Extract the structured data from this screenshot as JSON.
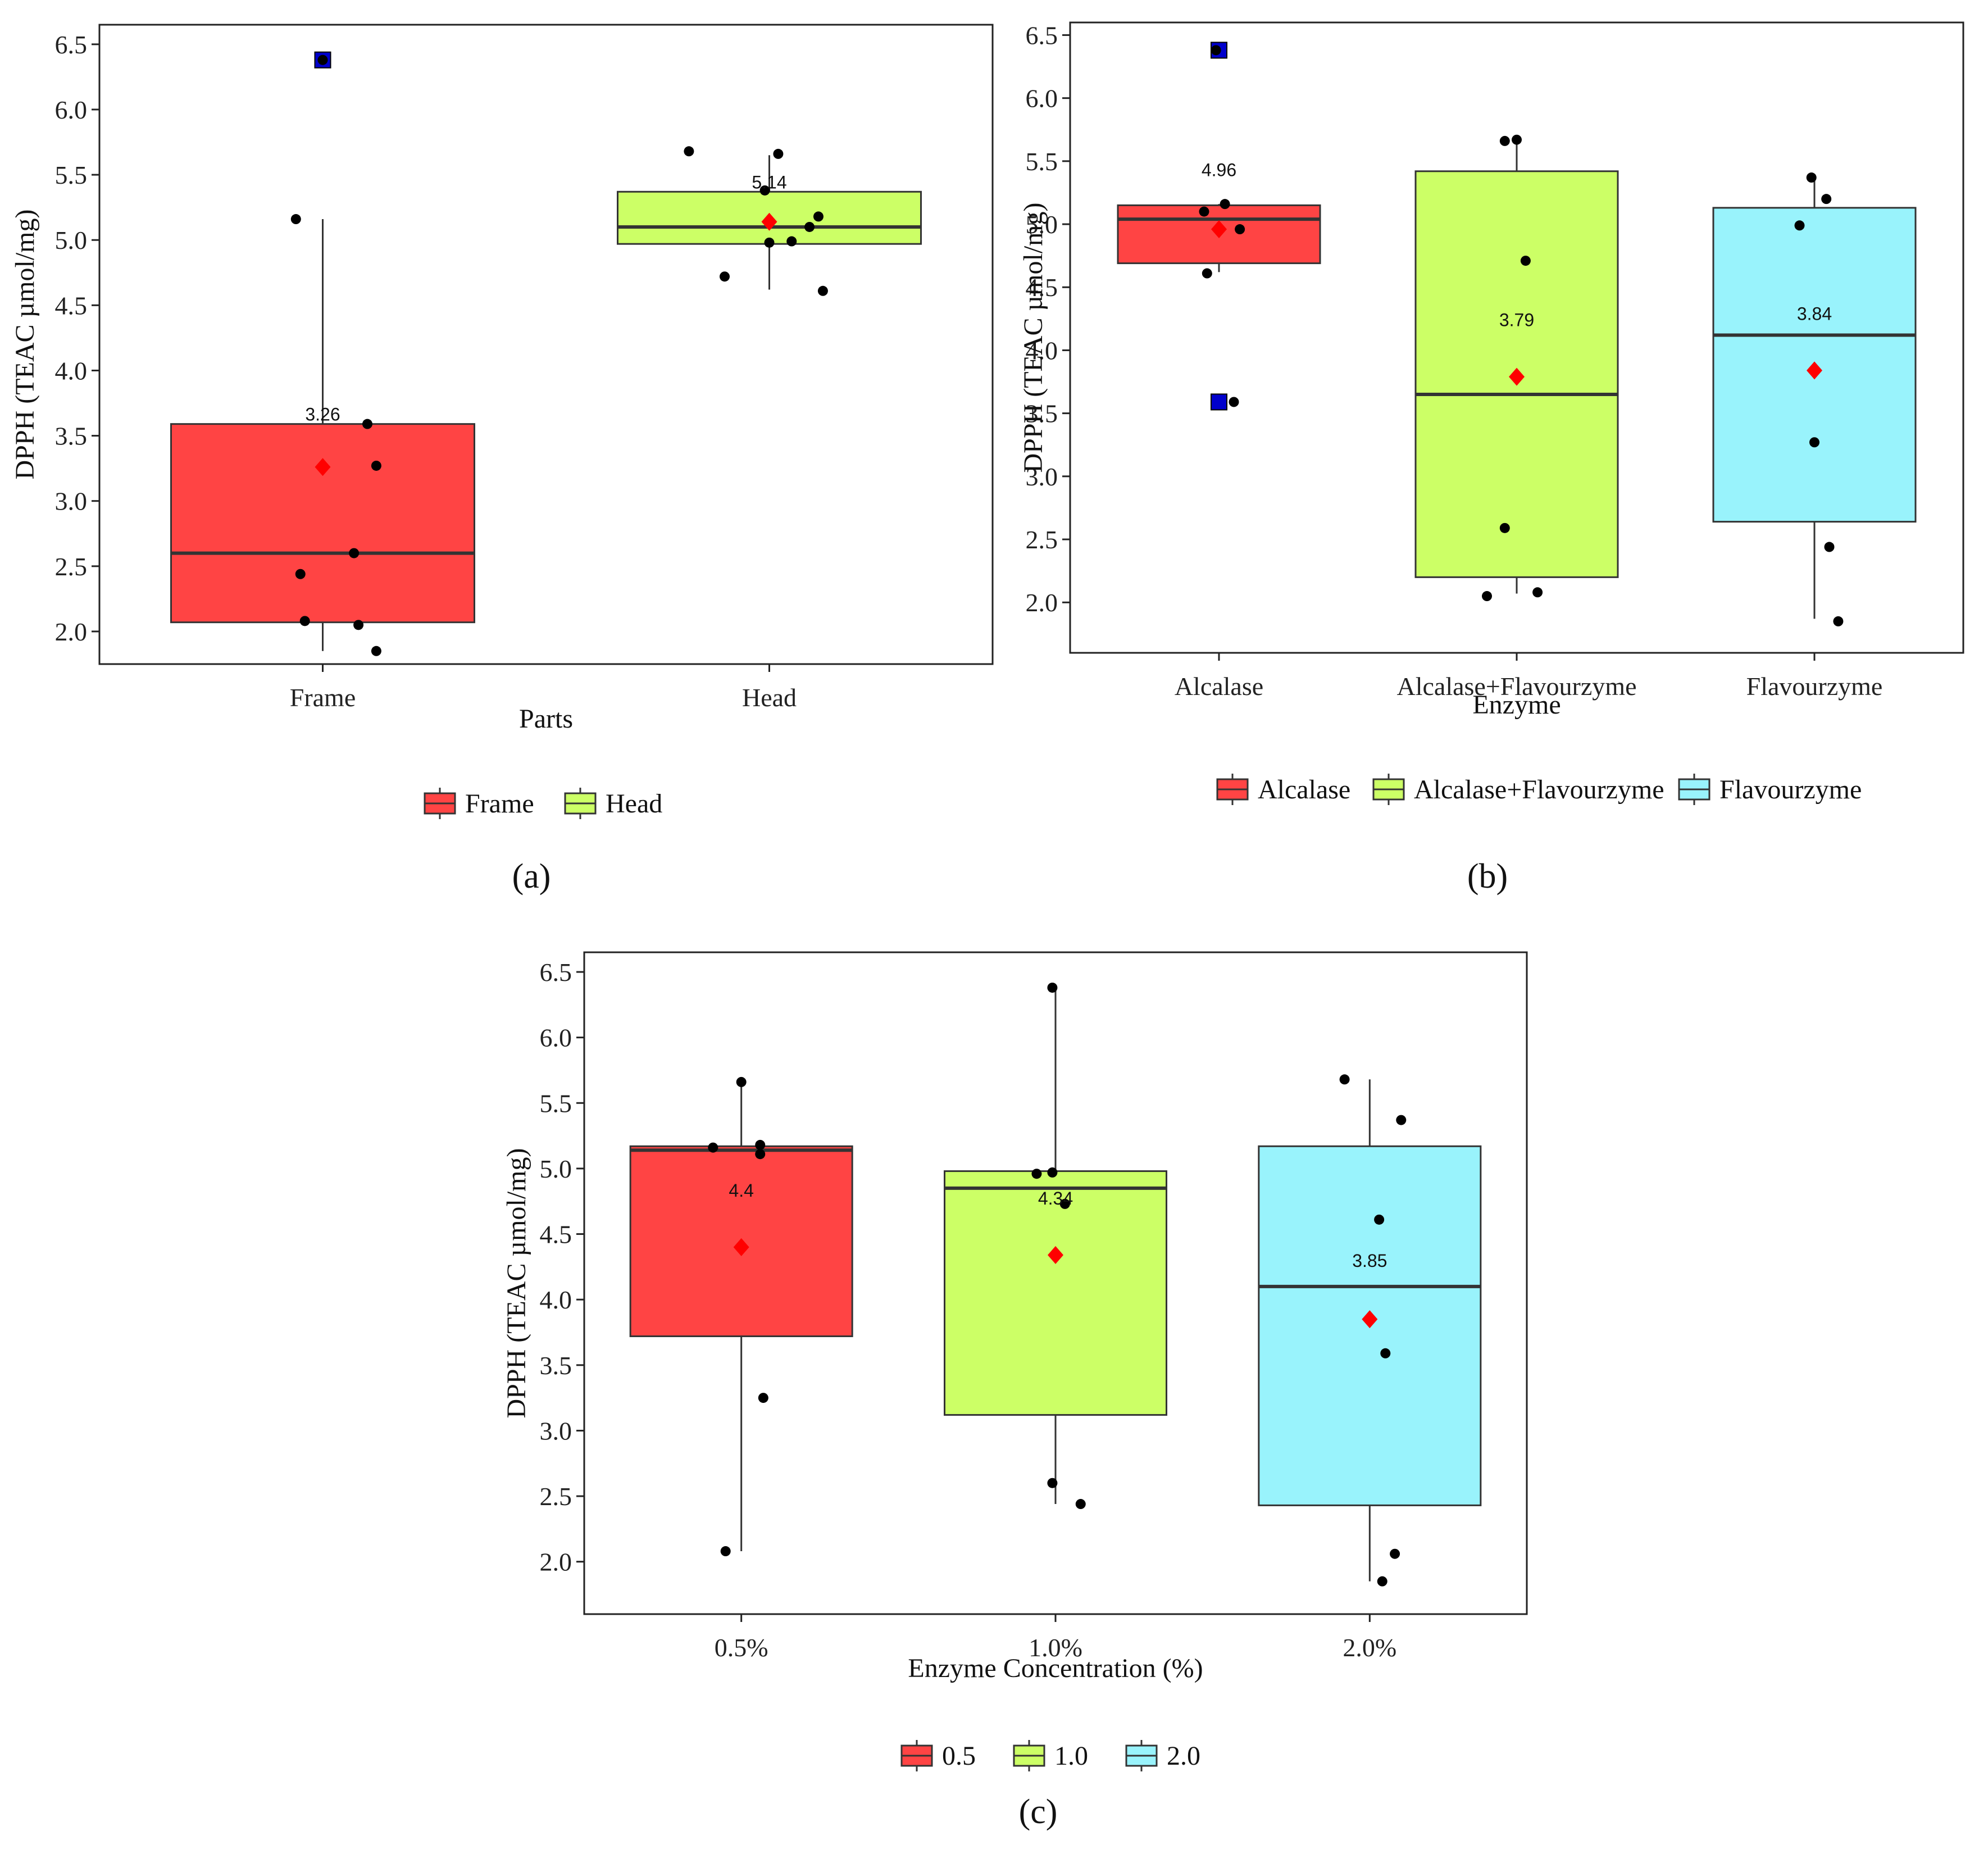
{
  "colors": {
    "red": "#FF4444",
    "green": "#CCFF66",
    "cyan": "#99F3FC",
    "mean_marker": "#FF0000",
    "outlier": "#0000CC",
    "point": "#000000"
  },
  "chart_data": [
    {
      "type": "box",
      "caption": "(a)",
      "xlabel": "Parts",
      "ylabel": "DPPH (TEAC µmol/mg)",
      "ylim": [
        1.75,
        6.65
      ],
      "yticks": [
        "2.0",
        "2.5",
        "3.0",
        "3.5",
        "4.0",
        "4.5",
        "5.0",
        "5.5",
        "6.0",
        "6.5"
      ],
      "categories": [
        "Frame",
        "Head"
      ],
      "legend": [
        "Frame",
        "Head"
      ],
      "boxes": [
        {
          "category": "Frame",
          "color": "red",
          "q1": 2.07,
          "median": 2.6,
          "q3": 3.59,
          "whisker_low": 1.85,
          "whisker_high": 5.16,
          "mean": 3.26,
          "mean_label": "3.26",
          "points": [
            [
              0.0,
              6.38
            ],
            [
              -0.06,
              5.16
            ],
            [
              0.1,
              3.59
            ],
            [
              0.12,
              3.27
            ],
            [
              0.07,
              2.6
            ],
            [
              -0.05,
              2.44
            ],
            [
              -0.04,
              2.08
            ],
            [
              0.08,
              2.05
            ],
            [
              0.12,
              1.85
            ]
          ],
          "outliers": [
            6.38
          ]
        },
        {
          "category": "Head",
          "color": "green",
          "q1": 4.97,
          "median": 5.1,
          "q3": 5.37,
          "whisker_low": 4.62,
          "whisker_high": 5.65,
          "mean": 5.14,
          "mean_label": "5.14",
          "points": [
            [
              -0.18,
              5.68
            ],
            [
              0.02,
              5.66
            ],
            [
              -0.01,
              5.38
            ],
            [
              0.11,
              5.18
            ],
            [
              0.09,
              5.1
            ],
            [
              0.0,
              4.98
            ],
            [
              0.05,
              4.99
            ],
            [
              -0.1,
              4.72
            ],
            [
              0.12,
              4.61
            ]
          ],
          "outliers": []
        }
      ]
    },
    {
      "type": "box",
      "caption": "(b)",
      "xlabel": "Enzyme",
      "ylabel": "DPPH (TEAC µmol/mg)",
      "ylim": [
        1.6,
        6.6
      ],
      "yticks": [
        "2.0",
        "2.5",
        "3.0",
        "3.5",
        "4.0",
        "4.5",
        "5.0",
        "5.5",
        "6.0",
        "6.5"
      ],
      "categories": [
        "Alcalase",
        "Alcalase+Flavourzyme",
        "Flavourzyme"
      ],
      "legend": [
        "Alcalase",
        "Alcalase+Flavourzyme",
        "Flavourzyme"
      ],
      "boxes": [
        {
          "category": "Alcalase",
          "color": "red",
          "q1": 4.69,
          "median": 5.04,
          "q3": 5.15,
          "whisker_low": 4.62,
          "whisker_high": 5.16,
          "mean": 4.96,
          "mean_label": "4.96",
          "points": [
            [
              -0.01,
              6.38
            ],
            [
              -0.05,
              5.1
            ],
            [
              0.02,
              5.16
            ],
            [
              0.07,
              4.96
            ],
            [
              -0.04,
              4.61
            ],
            [
              0.05,
              3.59
            ]
          ],
          "outliers": [
            6.38,
            3.59
          ]
        },
        {
          "category": "Alcalase+Flavourzyme",
          "color": "green",
          "q1": 2.2,
          "median": 3.65,
          "q3": 5.42,
          "whisker_low": 2.07,
          "whisker_high": 5.66,
          "mean": 3.79,
          "mean_label": "3.79",
          "points": [
            [
              -0.04,
              5.66
            ],
            [
              0.0,
              5.67
            ],
            [
              0.03,
              4.71
            ],
            [
              -0.04,
              2.59
            ],
            [
              -0.1,
              2.05
            ],
            [
              0.07,
              2.08
            ]
          ],
          "outliers": []
        },
        {
          "category": "Flavourzyme",
          "color": "cyan",
          "q1": 2.64,
          "median": 4.12,
          "q3": 5.13,
          "whisker_low": 1.87,
          "whisker_high": 5.36,
          "mean": 3.84,
          "mean_label": "3.84",
          "points": [
            [
              -0.01,
              5.37
            ],
            [
              0.04,
              5.2
            ],
            [
              -0.05,
              4.99
            ],
            [
              0.0,
              3.27
            ],
            [
              0.05,
              2.44
            ],
            [
              0.08,
              1.85
            ]
          ],
          "outliers": []
        }
      ]
    },
    {
      "type": "box",
      "caption": "(c)",
      "xlabel": "Enzyme Concentration (%)",
      "ylabel": "DPPH (TEAC µmol/mg)",
      "ylim": [
        1.6,
        6.65
      ],
      "yticks": [
        "2.0",
        "2.5",
        "3.0",
        "3.5",
        "4.0",
        "4.5",
        "5.0",
        "5.5",
        "6.0",
        "6.5"
      ],
      "categories": [
        "0.5%",
        "1.0%",
        "2.0%"
      ],
      "legend": [
        "0.5",
        "1.0",
        "2.0"
      ],
      "boxes": [
        {
          "category": "0.5%",
          "color": "red",
          "q1": 3.72,
          "median": 5.14,
          "q3": 5.17,
          "whisker_low": 2.08,
          "whisker_high": 5.66,
          "mean": 4.4,
          "mean_label": "4.4",
          "points": [
            [
              0.0,
              5.66
            ],
            [
              -0.09,
              5.16
            ],
            [
              0.06,
              5.18
            ],
            [
              0.06,
              5.11
            ],
            [
              0.07,
              3.25
            ],
            [
              -0.05,
              2.08
            ]
          ],
          "outliers": []
        },
        {
          "category": "1.0%",
          "color": "green",
          "q1": 3.12,
          "median": 4.85,
          "q3": 4.98,
          "whisker_low": 2.44,
          "whisker_high": 6.38,
          "mean": 4.34,
          "mean_label": "4.34",
          "points": [
            [
              -0.01,
              6.38
            ],
            [
              -0.06,
              4.96
            ],
            [
              -0.01,
              4.97
            ],
            [
              0.03,
              4.73
            ],
            [
              -0.01,
              2.6
            ],
            [
              0.08,
              2.44
            ]
          ],
          "outliers": []
        },
        {
          "category": "2.0%",
          "color": "cyan",
          "q1": 2.43,
          "median": 4.1,
          "q3": 5.17,
          "whisker_low": 1.85,
          "whisker_high": 5.68,
          "mean": 3.85,
          "mean_label": "3.85",
          "points": [
            [
              -0.08,
              5.68
            ],
            [
              0.1,
              5.37
            ],
            [
              0.03,
              4.61
            ],
            [
              0.05,
              3.59
            ],
            [
              0.08,
              2.06
            ],
            [
              0.04,
              1.85
            ]
          ],
          "outliers": []
        }
      ]
    }
  ]
}
